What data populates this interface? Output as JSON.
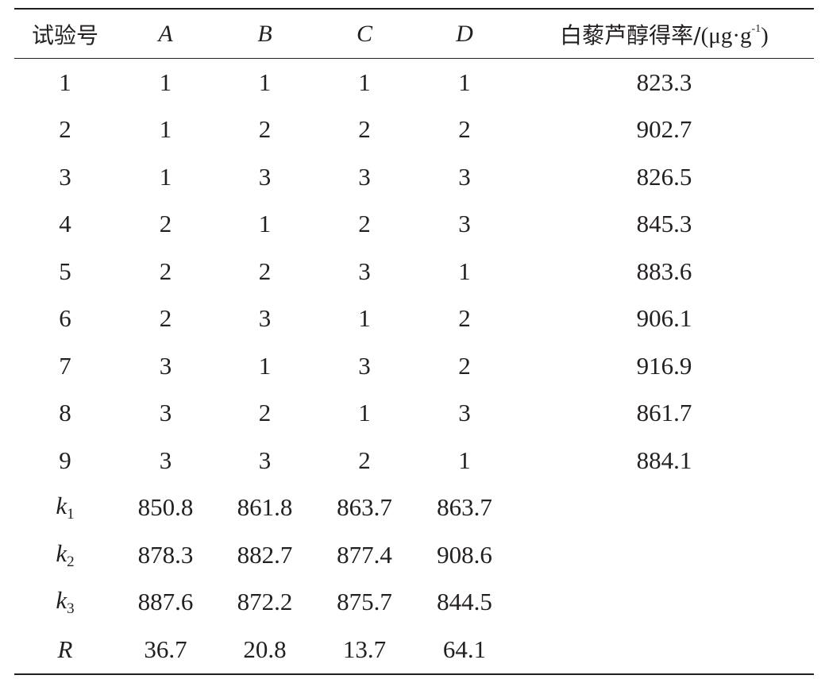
{
  "table": {
    "headers": {
      "trial": "试验号",
      "a": "A",
      "b": "B",
      "c": "C",
      "d": "D",
      "yield_label": "白藜芦醇得率/",
      "yield_unit": "(μg·g",
      "yield_unit_exp": "-1",
      "yield_unit_close": ")"
    },
    "trials": [
      {
        "no": "1",
        "a": "1",
        "b": "1",
        "c": "1",
        "d": "1",
        "yield": "823.3"
      },
      {
        "no": "2",
        "a": "1",
        "b": "2",
        "c": "2",
        "d": "2",
        "yield": "902.7"
      },
      {
        "no": "3",
        "a": "1",
        "b": "3",
        "c": "3",
        "d": "3",
        "yield": "826.5"
      },
      {
        "no": "4",
        "a": "2",
        "b": "1",
        "c": "2",
        "d": "3",
        "yield": "845.3"
      },
      {
        "no": "5",
        "a": "2",
        "b": "2",
        "c": "3",
        "d": "1",
        "yield": "883.6"
      },
      {
        "no": "6",
        "a": "2",
        "b": "3",
        "c": "1",
        "d": "2",
        "yield": "906.1"
      },
      {
        "no": "7",
        "a": "3",
        "b": "1",
        "c": "3",
        "d": "2",
        "yield": "916.9"
      },
      {
        "no": "8",
        "a": "3",
        "b": "2",
        "c": "1",
        "d": "3",
        "yield": "861.7"
      },
      {
        "no": "9",
        "a": "3",
        "b": "3",
        "c": "2",
        "d": "1",
        "yield": "884.1"
      }
    ],
    "stats": [
      {
        "label": "k",
        "sub": "1",
        "a": "850.8",
        "b": "861.8",
        "c": "863.7",
        "d": "863.7"
      },
      {
        "label": "k",
        "sub": "2",
        "a": "878.3",
        "b": "882.7",
        "c": "877.4",
        "d": "908.6"
      },
      {
        "label": "k",
        "sub": "3",
        "a": "887.6",
        "b": "872.2",
        "c": "875.7",
        "d": "844.5"
      },
      {
        "label": "R",
        "sub": "",
        "a": "36.7",
        "b": "20.8",
        "c": "13.7",
        "d": "64.1"
      }
    ]
  }
}
